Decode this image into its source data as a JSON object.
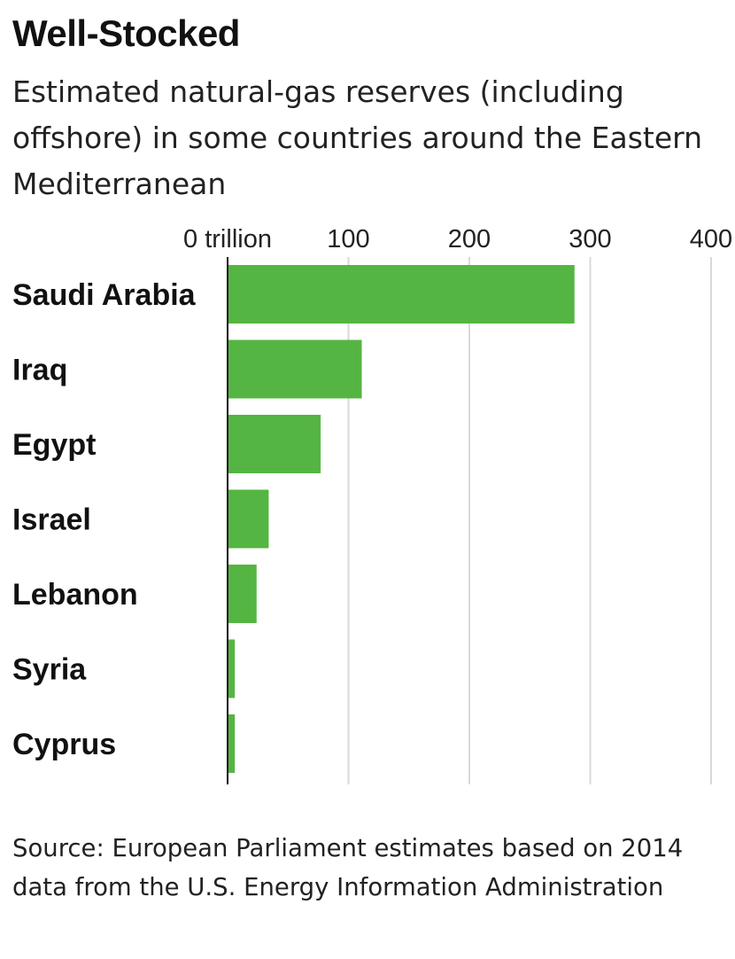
{
  "title": "Well-Stocked",
  "subtitle": "Estimated natural-gas reserves (including offshore) in some countries around the Eastern Mediterranean",
  "source": "Source: European Parliament estimates based on 2014 data from the U.S. Energy Information Administration",
  "chart_data": {
    "type": "bar",
    "orientation": "horizontal",
    "categories": [
      "Saudi Arabia",
      "Iraq",
      "Egypt",
      "Israel",
      "Lebanon",
      "Syria",
      "Cyprus"
    ],
    "values": [
      287,
      111,
      77,
      34,
      24,
      6,
      6
    ],
    "xlim": [
      0,
      400
    ],
    "ticks": [
      0,
      100,
      200,
      300,
      400
    ],
    "tick_labels": [
      "0 trillion",
      "100",
      "200",
      "300",
      "400"
    ],
    "bar_color": "#55b542",
    "grid": true
  }
}
